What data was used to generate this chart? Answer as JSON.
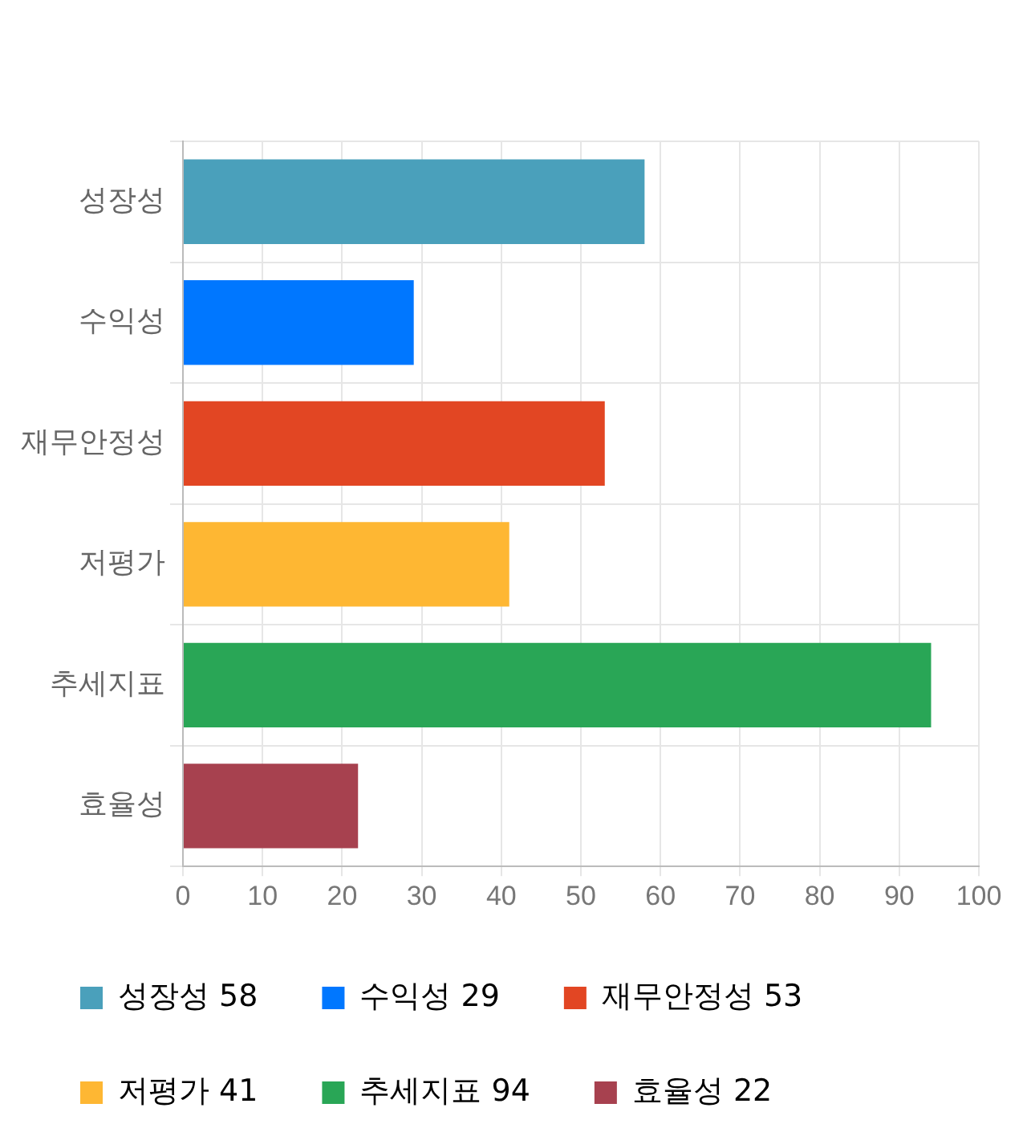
{
  "chart_data": {
    "type": "bar",
    "orientation": "horizontal",
    "categories": [
      "성장성",
      "수익성",
      "재무안정성",
      "저평가",
      "추세지표",
      "효율성"
    ],
    "series": [
      {
        "name": "성장성 58",
        "color": "#4aa0bb",
        "values": [
          58,
          null,
          null,
          null,
          null,
          null
        ]
      },
      {
        "name": "수익성 29",
        "color": "#0077ff",
        "values": [
          null,
          29,
          null,
          null,
          null,
          null
        ]
      },
      {
        "name": "재무안정성 53",
        "color": "#e24623",
        "values": [
          null,
          null,
          53,
          null,
          null,
          null
        ]
      },
      {
        "name": "저평가 41",
        "color": "#feb733",
        "values": [
          null,
          null,
          null,
          41,
          null,
          null
        ]
      },
      {
        "name": "추세지표 94",
        "color": "#29a656",
        "values": [
          null,
          null,
          null,
          null,
          94,
          null
        ]
      },
      {
        "name": "효율성 22",
        "color": "#a7414f",
        "values": [
          null,
          null,
          null,
          null,
          null,
          22
        ]
      }
    ],
    "xlim": [
      0,
      100
    ],
    "xticks": [
      0,
      10,
      20,
      30,
      40,
      50,
      60,
      70,
      80,
      90,
      100
    ],
    "grid": true,
    "legend": "bottom"
  }
}
